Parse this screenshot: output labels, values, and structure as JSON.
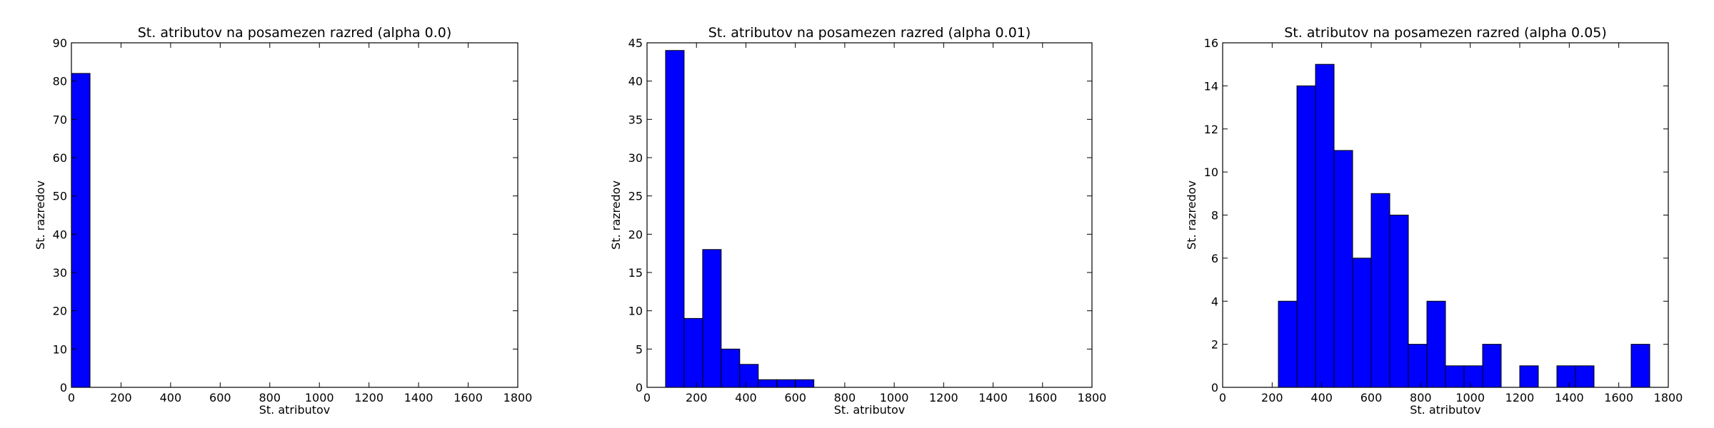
{
  "chart_data": [
    {
      "type": "bar",
      "subtype": "histogram",
      "title": "St. atributov na posamezen razred (alpha 0.0)",
      "xlabel": "St. atributov",
      "ylabel": "St. razredov",
      "xlim": [
        0,
        1800
      ],
      "ylim": [
        0,
        90
      ],
      "xticks": [
        0,
        200,
        400,
        600,
        800,
        1000,
        1200,
        1400,
        1600,
        1800
      ],
      "yticks": [
        0,
        10,
        20,
        30,
        40,
        50,
        60,
        70,
        80,
        90
      ],
      "bins": [
        {
          "x0": 0,
          "x1": 75,
          "count": 82
        }
      ],
      "bar_color": "#0000ff",
      "grid": false
    },
    {
      "type": "bar",
      "subtype": "histogram",
      "title": "St. atributov na posamezen razred (alpha 0.01)",
      "xlabel": "St. atributov",
      "ylabel": "St. razredov",
      "xlim": [
        0,
        1800
      ],
      "ylim": [
        0,
        45
      ],
      "xticks": [
        0,
        200,
        400,
        600,
        800,
        1000,
        1200,
        1400,
        1600,
        1800
      ],
      "yticks": [
        0,
        5,
        10,
        15,
        20,
        25,
        30,
        35,
        40,
        45
      ],
      "bins": [
        {
          "x0": 75,
          "x1": 150,
          "count": 44
        },
        {
          "x0": 150,
          "x1": 225,
          "count": 9
        },
        {
          "x0": 225,
          "x1": 300,
          "count": 18
        },
        {
          "x0": 300,
          "x1": 375,
          "count": 5
        },
        {
          "x0": 375,
          "x1": 450,
          "count": 3
        },
        {
          "x0": 450,
          "x1": 525,
          "count": 1
        },
        {
          "x0": 525,
          "x1": 600,
          "count": 1
        },
        {
          "x0": 600,
          "x1": 675,
          "count": 1
        }
      ],
      "bar_color": "#0000ff",
      "grid": false
    },
    {
      "type": "bar",
      "subtype": "histogram",
      "title": "St. atributov na posamezen razred (alpha 0.05)",
      "xlabel": "St. atributov",
      "ylabel": "St. razredov",
      "xlim": [
        0,
        1800
      ],
      "ylim": [
        0,
        16
      ],
      "xticks": [
        0,
        200,
        400,
        600,
        800,
        1000,
        1200,
        1400,
        1600,
        1800
      ],
      "yticks": [
        0,
        2,
        4,
        6,
        8,
        10,
        12,
        14,
        16
      ],
      "bins": [
        {
          "x0": 225,
          "x1": 300,
          "count": 4
        },
        {
          "x0": 300,
          "x1": 375,
          "count": 14
        },
        {
          "x0": 375,
          "x1": 450,
          "count": 15
        },
        {
          "x0": 450,
          "x1": 525,
          "count": 11
        },
        {
          "x0": 525,
          "x1": 600,
          "count": 6
        },
        {
          "x0": 600,
          "x1": 675,
          "count": 9
        },
        {
          "x0": 675,
          "x1": 750,
          "count": 8
        },
        {
          "x0": 750,
          "x1": 825,
          "count": 2
        },
        {
          "x0": 825,
          "x1": 900,
          "count": 4
        },
        {
          "x0": 900,
          "x1": 975,
          "count": 1
        },
        {
          "x0": 975,
          "x1": 1050,
          "count": 1
        },
        {
          "x0": 1050,
          "x1": 1125,
          "count": 2
        },
        {
          "x0": 1200,
          "x1": 1275,
          "count": 1
        },
        {
          "x0": 1350,
          "x1": 1425,
          "count": 1
        },
        {
          "x0": 1425,
          "x1": 1500,
          "count": 1
        },
        {
          "x0": 1650,
          "x1": 1725,
          "count": 2
        }
      ],
      "bar_color": "#0000ff",
      "grid": false
    }
  ]
}
